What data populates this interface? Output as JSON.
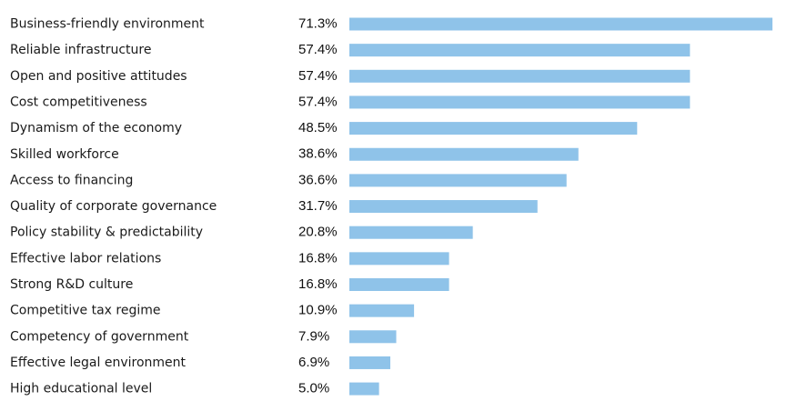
{
  "chart_data": {
    "type": "bar",
    "orientation": "horizontal",
    "categories": [
      "Business-friendly environment",
      "Reliable infrastructure",
      "Open and positive attitudes",
      "Cost competitiveness",
      "Dynamism of the economy",
      "Skilled workforce",
      "Access to financing",
      "Quality of corporate governance",
      "Policy stability & predictability",
      "Effective labor relations",
      "Strong R&D culture",
      "Competitive tax regime",
      "Competency of government",
      "Effective legal environment",
      "High educational level"
    ],
    "values": [
      71.3,
      57.4,
      57.4,
      57.4,
      48.5,
      38.6,
      36.6,
      31.7,
      20.8,
      16.8,
      16.8,
      10.9,
      7.9,
      6.9,
      5.0
    ],
    "value_labels": [
      "71.3%",
      "57.4%",
      "57.4%",
      "57.4%",
      "48.5%",
      "38.6%",
      "36.6%",
      "31.7%",
      "20.8%",
      "16.8%",
      "16.8%",
      "10.9%",
      "7.9%",
      "6.9%",
      "5.0%"
    ],
    "title": "",
    "xlabel": "",
    "ylabel": "",
    "xlim": [
      0,
      71.3
    ],
    "grid": false,
    "legend": "none",
    "bar_color": "#8fc3e9"
  }
}
